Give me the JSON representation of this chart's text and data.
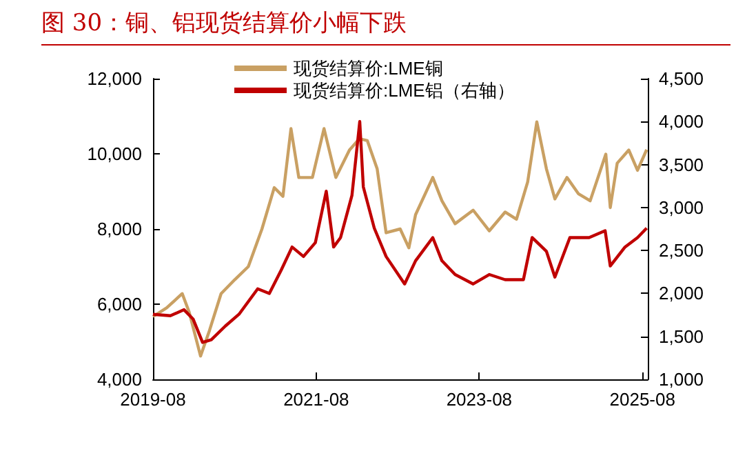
{
  "chart_data": {
    "type": "line",
    "title": "图 30：铜、铝现货结算价小幅下跌",
    "legend": "top",
    "grid": false,
    "marker": "none",
    "line_style": "solid",
    "xlim": [
      "2019-08-01",
      "2025-08-25"
    ],
    "xticks": [
      "2019-08",
      "2021-08",
      "2023-08",
      "2025-08"
    ],
    "ylim": [
      4000,
      12000
    ],
    "yticks": [
      {
        "value": 4000,
        "label": "4,000"
      },
      {
        "value": 6000,
        "label": "6,000"
      },
      {
        "value": 8000,
        "label": "8,000"
      },
      {
        "value": 10000,
        "label": "10,000"
      },
      {
        "value": 12000,
        "label": "12,000"
      }
    ],
    "y2lim": [
      1000,
      4500
    ],
    "y2ticks": [
      {
        "value": 1000,
        "label": "1,000"
      },
      {
        "value": 1500,
        "label": "1,500"
      },
      {
        "value": 2000,
        "label": "2,000"
      },
      {
        "value": 2500,
        "label": "2,500"
      },
      {
        "value": 3000,
        "label": "3,000"
      },
      {
        "value": 3500,
        "label": "3,500"
      },
      {
        "value": 4000,
        "label": "4,000"
      },
      {
        "value": 4500,
        "label": "4,500"
      }
    ],
    "series": [
      {
        "name": "现货结算价:LME铜",
        "color": "#c9a063",
        "x": [
          "2019-08-01",
          "2019-10-01",
          "2019-12-10",
          "2020-01-10",
          "2020-03-01",
          "2020-04-10",
          "2020-06-01",
          "2020-08-01",
          "2020-10-01",
          "2020-12-01",
          "2021-01-25",
          "2021-03-05",
          "2021-04-10",
          "2021-05-15",
          "2021-07-15",
          "2021-09-05",
          "2021-10-28",
          "2021-12-28",
          "2022-02-10",
          "2022-03-18",
          "2022-05-01",
          "2022-06-10",
          "2022-08-12",
          "2022-09-20",
          "2022-10-20",
          "2023-01-05",
          "2023-02-15",
          "2023-04-15",
          "2023-07-05",
          "2023-09-15",
          "2023-11-25",
          "2024-01-15",
          "2024-03-05",
          "2024-04-15",
          "2024-05-28",
          "2024-07-05",
          "2024-08-28",
          "2024-10-18",
          "2024-12-10",
          "2025-02-18",
          "2025-03-10",
          "2025-04-10",
          "2025-06-01",
          "2025-07-10",
          "2025-08-20"
        ],
        "values": [
          5670,
          5900,
          6280,
          5790,
          4620,
          5300,
          6280,
          6650,
          7000,
          8000,
          9100,
          8870,
          10670,
          9370,
          9370,
          10670,
          9370,
          10100,
          10400,
          10350,
          9600,
          7900,
          8000,
          7500,
          8380,
          9370,
          8750,
          8140,
          8500,
          7950,
          8450,
          8260,
          9250,
          10850,
          9600,
          8800,
          9370,
          8940,
          8750,
          9990,
          8570,
          9750,
          10100,
          9560,
          10110
        ]
      },
      {
        "name": "现货结算价:LME铝（右轴）",
        "color": "#c00000",
        "axis": "y2",
        "x": [
          "2019-08-01",
          "2019-10-18",
          "2019-12-18",
          "2020-01-28",
          "2020-03-10",
          "2020-04-18",
          "2020-06-20",
          "2020-08-20",
          "2020-11-12",
          "2021-01-03",
          "2021-02-25",
          "2021-04-15",
          "2021-06-05",
          "2021-07-28",
          "2021-08-28",
          "2021-09-15",
          "2021-10-18",
          "2021-11-18",
          "2022-01-08",
          "2022-02-12",
          "2022-02-28",
          "2022-04-18",
          "2022-06-10",
          "2022-09-01",
          "2022-10-20",
          "2023-01-05",
          "2023-02-15",
          "2023-04-15",
          "2023-07-05",
          "2023-09-15",
          "2023-11-25",
          "2024-02-15",
          "2024-03-25",
          "2024-05-28",
          "2024-07-05",
          "2024-09-10",
          "2024-12-05",
          "2025-02-15",
          "2025-03-10",
          "2025-05-15",
          "2025-07-10",
          "2025-08-20"
        ],
        "values": [
          1757,
          1740,
          1810,
          1700,
          1430,
          1460,
          1620,
          1757,
          2054,
          2000,
          2270,
          2540,
          2430,
          2590,
          2970,
          3190,
          2540,
          2650,
          3140,
          4000,
          3240,
          2760,
          2430,
          2110,
          2380,
          2650,
          2380,
          2220,
          2110,
          2220,
          2160,
          2160,
          2650,
          2490,
          2190,
          2650,
          2650,
          2730,
          2320,
          2540,
          2650,
          2760
        ]
      }
    ]
  }
}
